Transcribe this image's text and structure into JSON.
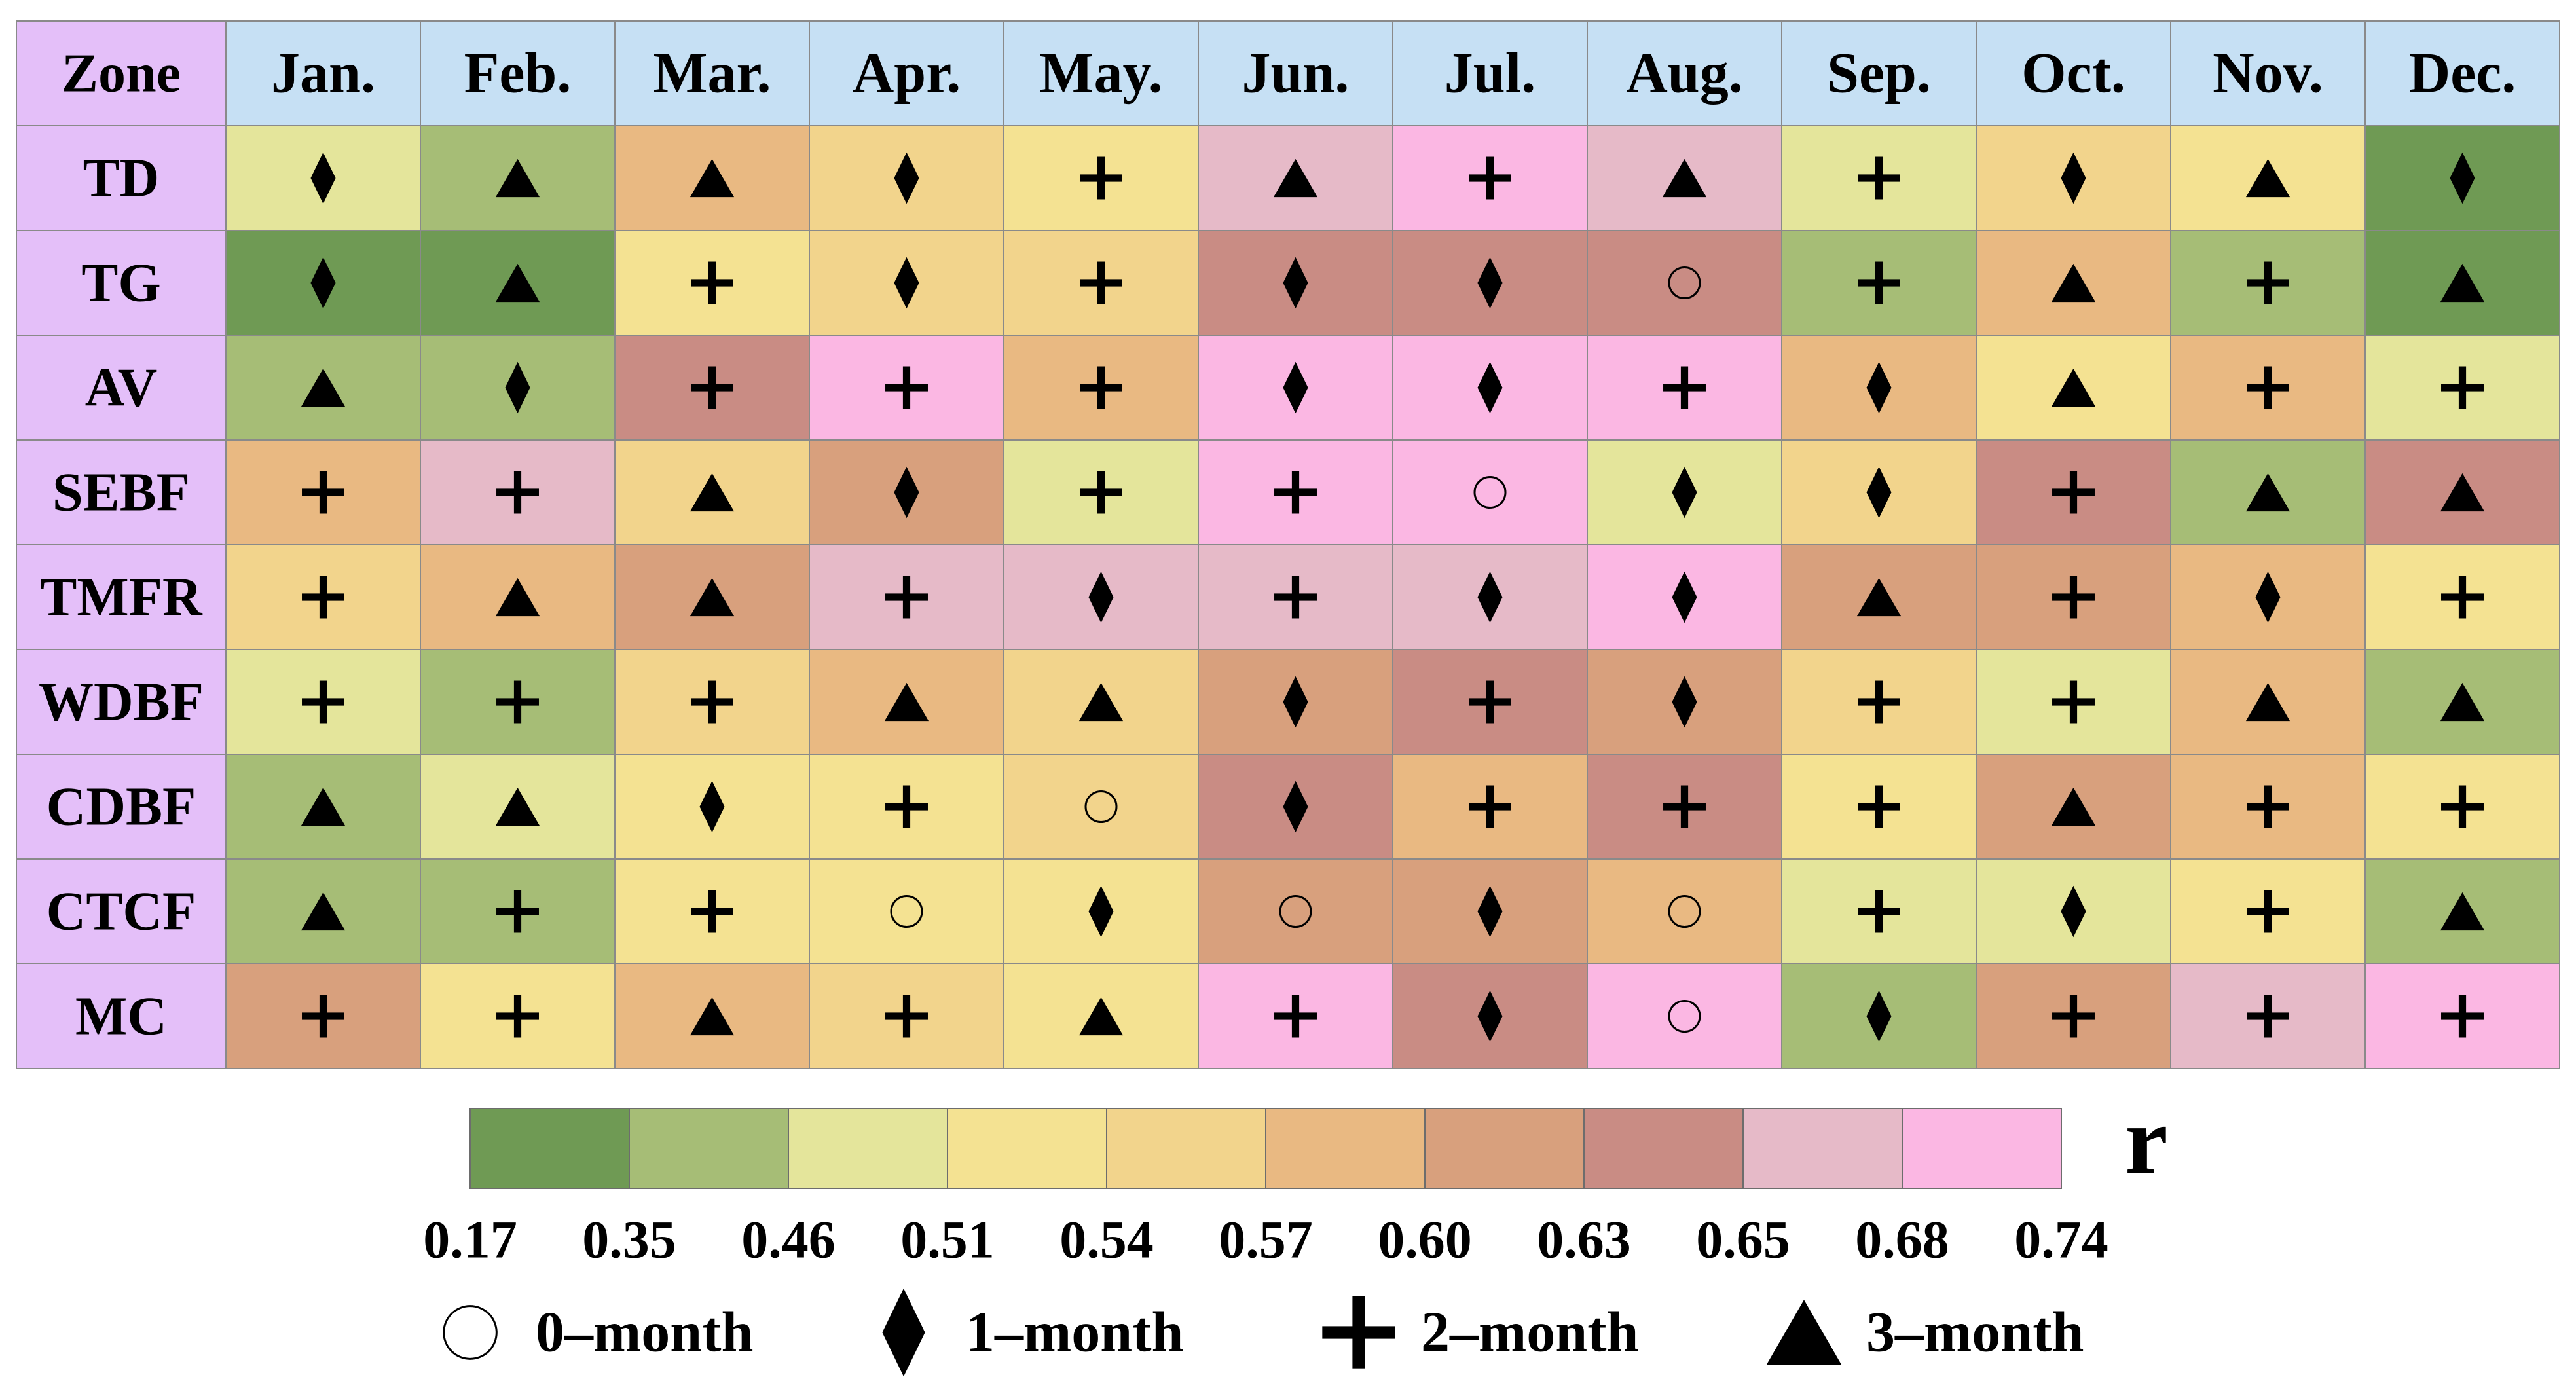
{
  "chart_data": {
    "type": "heatmap",
    "corner_label": "Zone",
    "columns": [
      "Jan.",
      "Feb.",
      "Mar.",
      "Apr.",
      "May.",
      "Jun.",
      "Jul.",
      "Aug.",
      "Sep.",
      "Oct.",
      "Nov.",
      "Dec."
    ],
    "rows": [
      "TD",
      "TG",
      "AV",
      "SEBF",
      "TMFR",
      "WDBF",
      "CDBF",
      "CTCF",
      "MC"
    ],
    "color_bins": [
      "#6f9a54",
      "#a6bd76",
      "#e4e59b",
      "#f4e292",
      "#f2d48c",
      "#e9b982",
      "#d8a07d",
      "#c98c84",
      "#e6bac8",
      "#fbb7e3"
    ],
    "header_colors": {
      "corner": "#e4bff9",
      "month": "#c6e0f4",
      "zone": "#e4bff9"
    },
    "cell_bins": [
      [
        2,
        1,
        5,
        4,
        3,
        8,
        9,
        8,
        2,
        4,
        3,
        0
      ],
      [
        0,
        0,
        3,
        4,
        4,
        7,
        7,
        7,
        1,
        5,
        1,
        0
      ],
      [
        1,
        1,
        7,
        9,
        5,
        9,
        9,
        9,
        5,
        3,
        5,
        2
      ],
      [
        5,
        8,
        4,
        6,
        2,
        9,
        9,
        2,
        4,
        7,
        1,
        7
      ],
      [
        4,
        5,
        6,
        8,
        8,
        8,
        8,
        9,
        6,
        6,
        5,
        3
      ],
      [
        2,
        1,
        4,
        5,
        4,
        6,
        7,
        6,
        4,
        2,
        5,
        1
      ],
      [
        1,
        2,
        3,
        3,
        4,
        7,
        5,
        7,
        3,
        6,
        5,
        3
      ],
      [
        1,
        1,
        3,
        3,
        3,
        6,
        6,
        5,
        2,
        2,
        3,
        1
      ],
      [
        6,
        3,
        5,
        4,
        3,
        9,
        7,
        9,
        1,
        6,
        8,
        9
      ]
    ],
    "lags": [
      [
        1,
        3,
        3,
        1,
        2,
        3,
        2,
        3,
        2,
        1,
        3,
        1
      ],
      [
        1,
        3,
        2,
        1,
        2,
        1,
        1,
        0,
        2,
        3,
        2,
        3
      ],
      [
        3,
        1,
        2,
        2,
        2,
        1,
        1,
        2,
        1,
        3,
        2,
        2
      ],
      [
        2,
        2,
        3,
        1,
        2,
        2,
        0,
        1,
        1,
        2,
        3,
        3
      ],
      [
        2,
        3,
        3,
        2,
        1,
        2,
        1,
        1,
        3,
        2,
        1,
        2
      ],
      [
        2,
        2,
        2,
        3,
        3,
        1,
        2,
        1,
        2,
        2,
        3,
        3
      ],
      [
        3,
        3,
        1,
        2,
        0,
        1,
        2,
        2,
        2,
        3,
        2,
        2
      ],
      [
        3,
        2,
        2,
        0,
        1,
        0,
        1,
        0,
        2,
        1,
        2,
        3
      ],
      [
        2,
        2,
        3,
        2,
        3,
        2,
        1,
        0,
        1,
        2,
        2,
        2
      ]
    ],
    "colorbar": {
      "title": "r",
      "tick_labels": [
        "0.17",
        "0.35",
        "0.46",
        "0.51",
        "0.54",
        "0.57",
        "0.60",
        "0.63",
        "0.65",
        "0.68",
        "0.74"
      ]
    },
    "lag_legend": [
      {
        "symbol": "circle",
        "label": "0–month"
      },
      {
        "symbol": "diamond",
        "label": "1–month"
      },
      {
        "symbol": "plus",
        "label": "2–month"
      },
      {
        "symbol": "triangle",
        "label": "3–month"
      }
    ]
  }
}
